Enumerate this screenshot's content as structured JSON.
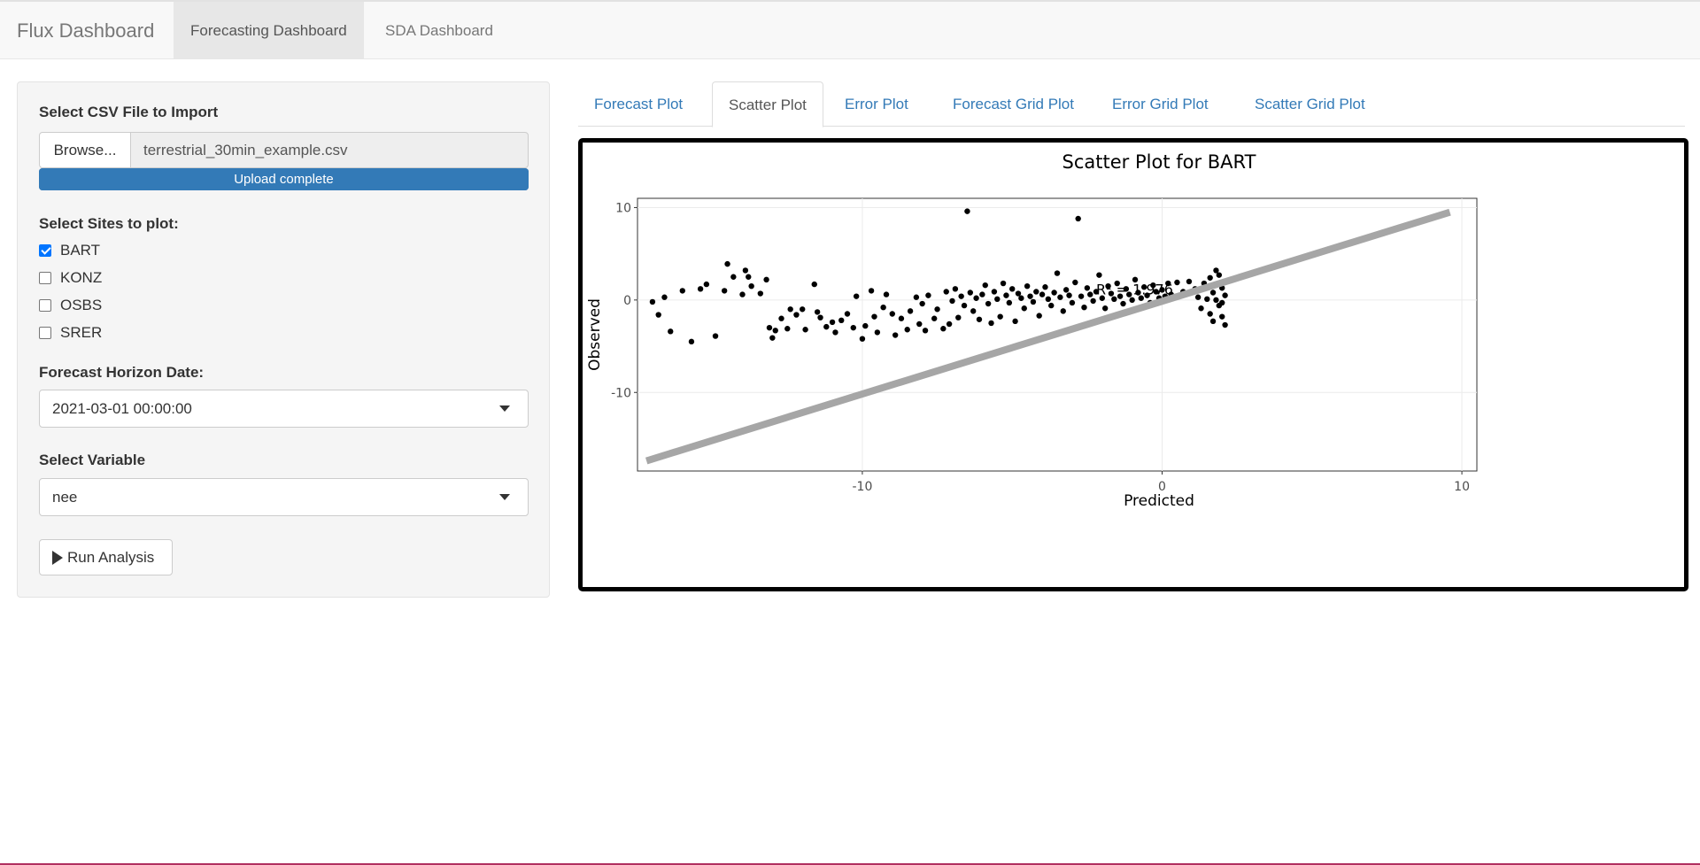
{
  "navbar": {
    "brand": "Flux Dashboard",
    "items": [
      {
        "label": "Forecasting Dashboard",
        "active": true
      },
      {
        "label": "SDA Dashboard",
        "active": false
      }
    ]
  },
  "sidebar": {
    "file_label": "Select CSV File to Import",
    "browse_label": "Browse...",
    "file_name": "terrestrial_30min_example.csv",
    "upload_status": "Upload complete",
    "upload_progress": 1.0,
    "sites_label": "Select Sites to plot:",
    "sites": [
      {
        "label": "BART",
        "checked": true
      },
      {
        "label": "KONZ",
        "checked": false
      },
      {
        "label": "OSBS",
        "checked": false
      },
      {
        "label": "SRER",
        "checked": false
      }
    ],
    "horizon_label": "Forecast Horizon Date:",
    "horizon_value": "2021-03-01 00:00:00",
    "variable_label": "Select Variable",
    "variable_value": "nee",
    "run_label": "Run Analysis"
  },
  "tabs": [
    {
      "label": "Forecast Plot",
      "active": false
    },
    {
      "label": "Scatter Plot",
      "active": true
    },
    {
      "label": "Error Plot",
      "active": false
    },
    {
      "label": "Forecast Grid Plot",
      "active": false
    },
    {
      "label": "Error Grid Plot",
      "active": false
    },
    {
      "label": "Scatter Grid Plot",
      "active": false
    }
  ],
  "colors": {
    "link": "#337ab7",
    "progress": "#337ab7",
    "checkbox": "#0075ff",
    "reference_line": "#a6a6a6",
    "points": "#000000"
  },
  "chart_data": {
    "type": "scatter",
    "title": "Scatter Plot for BART",
    "xlabel": "Predicted",
    "ylabel": "Observed",
    "xlim": [
      -17.5,
      10.5
    ],
    "ylim": [
      -18.5,
      11
    ],
    "x_ticks": [
      -10,
      0,
      10
    ],
    "y_ticks": [
      -10,
      0,
      10
    ],
    "grid": true,
    "reference_line": {
      "x1": -17.2,
      "y1": -17.4,
      "x2": 9.6,
      "y2": 9.5
    },
    "annotation": "R² = 1.976",
    "series": [
      {
        "points": [
          [
            -17.0,
            -0.2
          ],
          [
            -16.8,
            -1.6
          ],
          [
            -16.6,
            0.3
          ],
          [
            -16.4,
            -3.4
          ],
          [
            -16.0,
            1.0
          ],
          [
            -15.7,
            -4.5
          ],
          [
            -15.4,
            1.2
          ],
          [
            -15.2,
            1.7
          ],
          [
            -14.9,
            -3.9
          ],
          [
            -14.6,
            1.0
          ],
          [
            -14.5,
            3.9
          ],
          [
            -14.3,
            2.5
          ],
          [
            -14.0,
            0.6
          ],
          [
            -13.9,
            3.2
          ],
          [
            -13.8,
            2.5
          ],
          [
            -13.7,
            1.5
          ],
          [
            -13.4,
            0.7
          ],
          [
            -13.2,
            2.2
          ],
          [
            -13.1,
            -3.0
          ],
          [
            -13.0,
            -4.1
          ],
          [
            -12.9,
            -3.3
          ],
          [
            -12.7,
            -2.0
          ],
          [
            -12.5,
            -3.1
          ],
          [
            -12.4,
            -1.0
          ],
          [
            -12.2,
            -1.6
          ],
          [
            -12.0,
            -1.0
          ],
          [
            -11.9,
            -3.2
          ],
          [
            -11.6,
            1.7
          ],
          [
            -11.5,
            -1.3
          ],
          [
            -11.4,
            -1.9
          ],
          [
            -11.2,
            -2.9
          ],
          [
            -11.0,
            -2.4
          ],
          [
            -10.9,
            -3.5
          ],
          [
            -10.7,
            -2.2
          ],
          [
            -10.5,
            -1.5
          ],
          [
            -10.3,
            -3.0
          ],
          [
            -10.2,
            0.4
          ],
          [
            -10.0,
            -4.2
          ],
          [
            -9.9,
            -2.8
          ],
          [
            -9.7,
            1.0
          ],
          [
            -9.6,
            -1.8
          ],
          [
            -9.5,
            -3.5
          ],
          [
            -9.3,
            -0.8
          ],
          [
            -9.2,
            0.6
          ],
          [
            -9.0,
            -1.5
          ],
          [
            -8.9,
            -3.8
          ],
          [
            -8.7,
            -2.0
          ],
          [
            -8.5,
            -3.2
          ],
          [
            -8.4,
            -1.2
          ],
          [
            -8.2,
            0.3
          ],
          [
            -8.1,
            -2.6
          ],
          [
            -8.0,
            -0.4
          ],
          [
            -7.9,
            -3.3
          ],
          [
            -7.8,
            0.5
          ],
          [
            -7.6,
            -2.0
          ],
          [
            -7.5,
            -1.0
          ],
          [
            -7.3,
            -3.1
          ],
          [
            -7.2,
            0.9
          ],
          [
            -7.1,
            -2.6
          ],
          [
            -7.0,
            -0.1
          ],
          [
            -6.9,
            1.2
          ],
          [
            -6.8,
            -1.9
          ],
          [
            -6.7,
            0.4
          ],
          [
            -6.6,
            -0.6
          ],
          [
            -6.5,
            9.6
          ],
          [
            -6.4,
            0.8
          ],
          [
            -6.3,
            -1.2
          ],
          [
            -6.2,
            0.2
          ],
          [
            -6.1,
            -2.1
          ],
          [
            -6.0,
            0.6
          ],
          [
            -5.9,
            1.6
          ],
          [
            -5.8,
            -0.4
          ],
          [
            -5.7,
            -2.5
          ],
          [
            -5.6,
            0.9
          ],
          [
            -5.5,
            0.1
          ],
          [
            -5.4,
            -1.8
          ],
          [
            -5.3,
            1.8
          ],
          [
            -5.2,
            0.5
          ],
          [
            -5.1,
            -0.3
          ],
          [
            -5.0,
            1.2
          ],
          [
            -4.9,
            -2.3
          ],
          [
            -4.8,
            0.7
          ],
          [
            -4.7,
            0.2
          ],
          [
            -4.6,
            -0.9
          ],
          [
            -4.5,
            1.5
          ],
          [
            -4.4,
            0.4
          ],
          [
            -4.3,
            -0.2
          ],
          [
            -4.2,
            0.9
          ],
          [
            -4.1,
            -1.7
          ],
          [
            -4.0,
            0.6
          ],
          [
            -3.9,
            1.4
          ],
          [
            -3.8,
            0.1
          ],
          [
            -3.7,
            -0.6
          ],
          [
            -3.6,
            0.8
          ],
          [
            -3.5,
            2.9
          ],
          [
            -3.4,
            0.3
          ],
          [
            -3.3,
            -1.2
          ],
          [
            -3.2,
            1.1
          ],
          [
            -3.1,
            0.5
          ],
          [
            -3.0,
            -0.3
          ],
          [
            -2.9,
            1.9
          ],
          [
            -2.8,
            8.8
          ],
          [
            -2.7,
            0.4
          ],
          [
            -2.6,
            -0.8
          ],
          [
            -2.5,
            1.3
          ],
          [
            -2.4,
            0.6
          ],
          [
            -2.3,
            -0.1
          ],
          [
            -2.2,
            0.9
          ],
          [
            -2.1,
            2.7
          ],
          [
            -2.0,
            0.2
          ],
          [
            -1.9,
            -0.9
          ],
          [
            -1.8,
            1.5
          ],
          [
            -1.7,
            0.7
          ],
          [
            -1.6,
            0.1
          ],
          [
            -1.5,
            1.8
          ],
          [
            -1.4,
            0.4
          ],
          [
            -1.3,
            -0.4
          ],
          [
            -1.2,
            1.2
          ],
          [
            -1.1,
            0.6
          ],
          [
            -1.0,
            0.0
          ],
          [
            -0.9,
            2.2
          ],
          [
            -0.8,
            0.8
          ],
          [
            -0.7,
            0.2
          ],
          [
            -0.6,
            1.4
          ],
          [
            -0.5,
            0.5
          ],
          [
            -0.4,
            -0.3
          ],
          [
            -0.3,
            1.6
          ],
          [
            -0.2,
            0.9
          ],
          [
            -0.1,
            0.2
          ],
          [
            0.0,
            1.1
          ],
          [
            0.1,
            0.4
          ],
          [
            0.2,
            1.8
          ],
          [
            0.3,
            0.6
          ],
          [
            0.5,
            1.9
          ],
          [
            0.7,
            0.9
          ],
          [
            0.9,
            2.0
          ],
          [
            1.1,
            1.2
          ],
          [
            1.2,
            0.3
          ],
          [
            1.3,
            -0.9
          ],
          [
            1.4,
            1.8
          ],
          [
            1.5,
            0.1
          ],
          [
            1.6,
            -1.5
          ],
          [
            1.6,
            2.4
          ],
          [
            1.7,
            0.8
          ],
          [
            1.7,
            -2.3
          ],
          [
            1.8,
            3.2
          ],
          [
            1.8,
            0.0
          ],
          [
            1.9,
            -0.6
          ],
          [
            1.9,
            2.7
          ],
          [
            2.0,
            1.3
          ],
          [
            2.0,
            -1.8
          ],
          [
            2.0,
            -0.3
          ],
          [
            2.1,
            0.5
          ],
          [
            2.1,
            -2.7
          ]
        ]
      }
    ]
  }
}
